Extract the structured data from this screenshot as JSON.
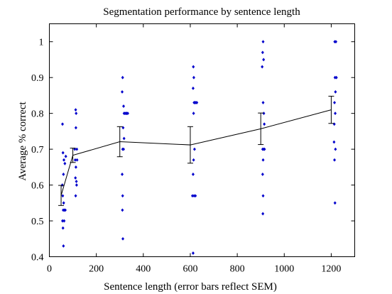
{
  "chart_data": {
    "type": "scatter",
    "title": "Segmentation performance by sentence length",
    "xlabel": "Sentence length (error bars reflect SEM)",
    "ylabel": "Average % correct",
    "xlim": [
      0,
      1300
    ],
    "ylim": [
      0.4,
      1.05
    ],
    "xticks": [
      0,
      200,
      400,
      600,
      800,
      1000,
      1200
    ],
    "yticks": [
      0.4,
      0.5,
      0.6,
      0.7,
      0.8,
      0.9,
      1
    ],
    "ytick_labels": [
      "0.4",
      "0.5",
      "0.6",
      "0.7",
      "0.8",
      "0.9",
      "1"
    ],
    "grid": false,
    "legend": "none",
    "colors": {
      "points": "#0000cc",
      "line": "#000000"
    },
    "mean_series": {
      "x": [
        50,
        100,
        300,
        600,
        900,
        1200
      ],
      "y": [
        0.571,
        0.683,
        0.721,
        0.712,
        0.757,
        0.81
      ],
      "sem": [
        0.028,
        0.02,
        0.042,
        0.051,
        0.044,
        0.038
      ]
    },
    "points": [
      {
        "x": 56,
        "y": 0.77
      },
      {
        "x": 58,
        "y": 0.69
      },
      {
        "x": 62,
        "y": 0.67
      },
      {
        "x": 60,
        "y": 0.63
      },
      {
        "x": 55,
        "y": 0.6
      },
      {
        "x": 57,
        "y": 0.57
      },
      {
        "x": 61,
        "y": 0.55
      },
      {
        "x": 59,
        "y": 0.53
      },
      {
        "x": 64,
        "y": 0.53
      },
      {
        "x": 56,
        "y": 0.5
      },
      {
        "x": 63,
        "y": 0.5
      },
      {
        "x": 58,
        "y": 0.48
      },
      {
        "x": 60,
        "y": 0.43
      },
      {
        "x": 68,
        "y": 0.53
      },
      {
        "x": 70,
        "y": 0.68
      },
      {
        "x": 66,
        "y": 0.66
      },
      {
        "x": 112,
        "y": 0.81
      },
      {
        "x": 114,
        "y": 0.8
      },
      {
        "x": 113,
        "y": 0.76
      },
      {
        "x": 108,
        "y": 0.7
      },
      {
        "x": 117,
        "y": 0.7
      },
      {
        "x": 110,
        "y": 0.67
      },
      {
        "x": 118,
        "y": 0.67
      },
      {
        "x": 113,
        "y": 0.65
      },
      {
        "x": 111,
        "y": 0.62
      },
      {
        "x": 115,
        "y": 0.61
      },
      {
        "x": 116,
        "y": 0.6
      },
      {
        "x": 112,
        "y": 0.57
      },
      {
        "x": 312,
        "y": 0.9
      },
      {
        "x": 310,
        "y": 0.86
      },
      {
        "x": 316,
        "y": 0.82
      },
      {
        "x": 318,
        "y": 0.8
      },
      {
        "x": 322,
        "y": 0.8
      },
      {
        "x": 326,
        "y": 0.8
      },
      {
        "x": 330,
        "y": 0.8
      },
      {
        "x": 334,
        "y": 0.8
      },
      {
        "x": 314,
        "y": 0.76
      },
      {
        "x": 318,
        "y": 0.73
      },
      {
        "x": 312,
        "y": 0.7
      },
      {
        "x": 316,
        "y": 0.7
      },
      {
        "x": 310,
        "y": 0.63
      },
      {
        "x": 312,
        "y": 0.57
      },
      {
        "x": 311,
        "y": 0.53
      },
      {
        "x": 313,
        "y": 0.45
      },
      {
        "x": 613,
        "y": 0.93
      },
      {
        "x": 615,
        "y": 0.9
      },
      {
        "x": 612,
        "y": 0.87
      },
      {
        "x": 616,
        "y": 0.83
      },
      {
        "x": 620,
        "y": 0.83
      },
      {
        "x": 624,
        "y": 0.83
      },
      {
        "x": 628,
        "y": 0.83
      },
      {
        "x": 614,
        "y": 0.8
      },
      {
        "x": 618,
        "y": 0.7
      },
      {
        "x": 614,
        "y": 0.67
      },
      {
        "x": 612,
        "y": 0.63
      },
      {
        "x": 609,
        "y": 0.57
      },
      {
        "x": 616,
        "y": 0.57
      },
      {
        "x": 622,
        "y": 0.57
      },
      {
        "x": 612,
        "y": 0.41
      },
      {
        "x": 910,
        "y": 1.0
      },
      {
        "x": 908,
        "y": 0.97
      },
      {
        "x": 912,
        "y": 0.95
      },
      {
        "x": 906,
        "y": 0.93
      },
      {
        "x": 910,
        "y": 0.83
      },
      {
        "x": 913,
        "y": 0.8
      },
      {
        "x": 915,
        "y": 0.77
      },
      {
        "x": 908,
        "y": 0.7
      },
      {
        "x": 912,
        "y": 0.7
      },
      {
        "x": 916,
        "y": 0.7
      },
      {
        "x": 910,
        "y": 0.67
      },
      {
        "x": 908,
        "y": 0.63
      },
      {
        "x": 910,
        "y": 0.57
      },
      {
        "x": 909,
        "y": 0.52
      },
      {
        "x": 1215,
        "y": 1.0
      },
      {
        "x": 1220,
        "y": 1.0
      },
      {
        "x": 1216,
        "y": 0.9
      },
      {
        "x": 1222,
        "y": 0.9
      },
      {
        "x": 1218,
        "y": 0.86
      },
      {
        "x": 1214,
        "y": 0.83
      },
      {
        "x": 1217,
        "y": 0.8
      },
      {
        "x": 1213,
        "y": 0.77
      },
      {
        "x": 1212,
        "y": 0.72
      },
      {
        "x": 1218,
        "y": 0.7
      },
      {
        "x": 1214,
        "y": 0.67
      },
      {
        "x": 1216,
        "y": 0.55
      }
    ]
  }
}
